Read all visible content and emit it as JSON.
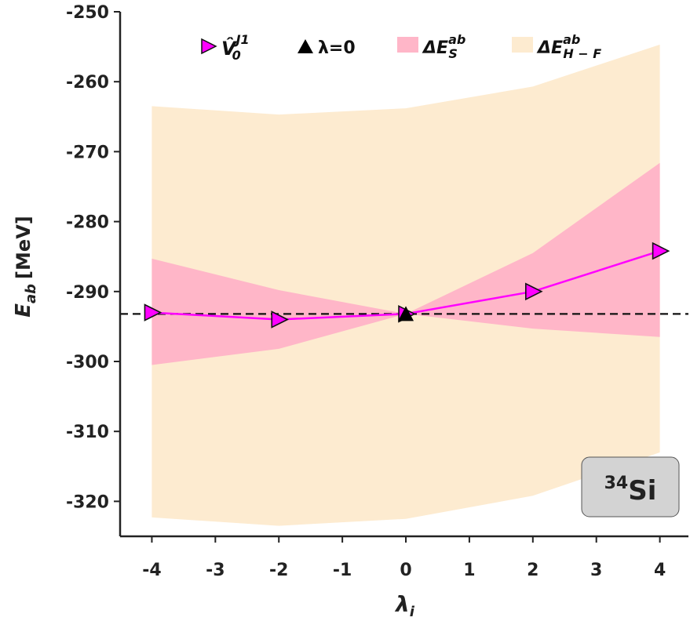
{
  "chart_data": {
    "type": "line",
    "xlabel": "λ",
    "xlabel_sub": "i",
    "ylabel": "E",
    "ylabel_sub": "ab",
    "ylabel_unit": "[MeV]",
    "xlim": [
      -4.5,
      4.45
    ],
    "ylim": [
      -325,
      -250
    ],
    "xticks": [
      -4,
      -3,
      -2,
      -1,
      0,
      1,
      2,
      3,
      4
    ],
    "xtick_labels": [
      "-4",
      "-3",
      "-2",
      "-1",
      "0",
      "1",
      "2",
      "3",
      "4"
    ],
    "yticks": [
      -250,
      -260,
      -270,
      -280,
      -290,
      -300,
      -310,
      -320
    ],
    "ytick_labels": [
      "-250",
      "-260",
      "-270",
      "-280",
      "-290",
      "-300",
      "-310",
      "-320"
    ],
    "reference_line": {
      "y": -293.2,
      "style": "dashed",
      "color": "#111111"
    },
    "series": [
      {
        "name": "V̂0J1",
        "legend_main": "V̂",
        "legend_sub": "0",
        "legend_sup": "J1",
        "marker": "triangle-right",
        "color": "#ff00ff",
        "x": [
          -4,
          -2,
          0,
          2,
          4
        ],
        "y": [
          -293.0,
          -294.0,
          -293.2,
          -290.0,
          -284.2
        ]
      },
      {
        "name": "λ=0",
        "legend_label": "λ=0",
        "marker": "triangle-up",
        "color": "#000000",
        "x": [
          0
        ],
        "y": [
          -293.2
        ]
      }
    ],
    "bands": [
      {
        "name": "ΔE_S^ab",
        "legend_main": "ΔE",
        "legend_sub": "S",
        "legend_sup": "ab",
        "color": "#ffb6c8",
        "x": [
          -4,
          -2,
          0,
          2,
          4
        ],
        "upper": [
          -285.3,
          -289.8,
          -293.2,
          -284.5,
          -271.6
        ],
        "lower": [
          -300.5,
          -298.2,
          -293.2,
          -295.3,
          -296.5
        ]
      },
      {
        "name": "ΔE_H-F^ab",
        "legend_main": "ΔE",
        "legend_sub": "H − F",
        "legend_sup": "ab",
        "color": "#fdebd0",
        "x": [
          -4,
          -2,
          0,
          2,
          4
        ],
        "upper": [
          -263.5,
          -264.7,
          -263.8,
          -260.7,
          -254.7
        ],
        "lower": [
          -322.3,
          -323.5,
          -322.5,
          -319.2,
          -313.0
        ]
      }
    ],
    "annotation": {
      "sup": "34",
      "text": "Si",
      "box_color": "#d3d3d3"
    },
    "legend_position": "top",
    "grid": false
  }
}
